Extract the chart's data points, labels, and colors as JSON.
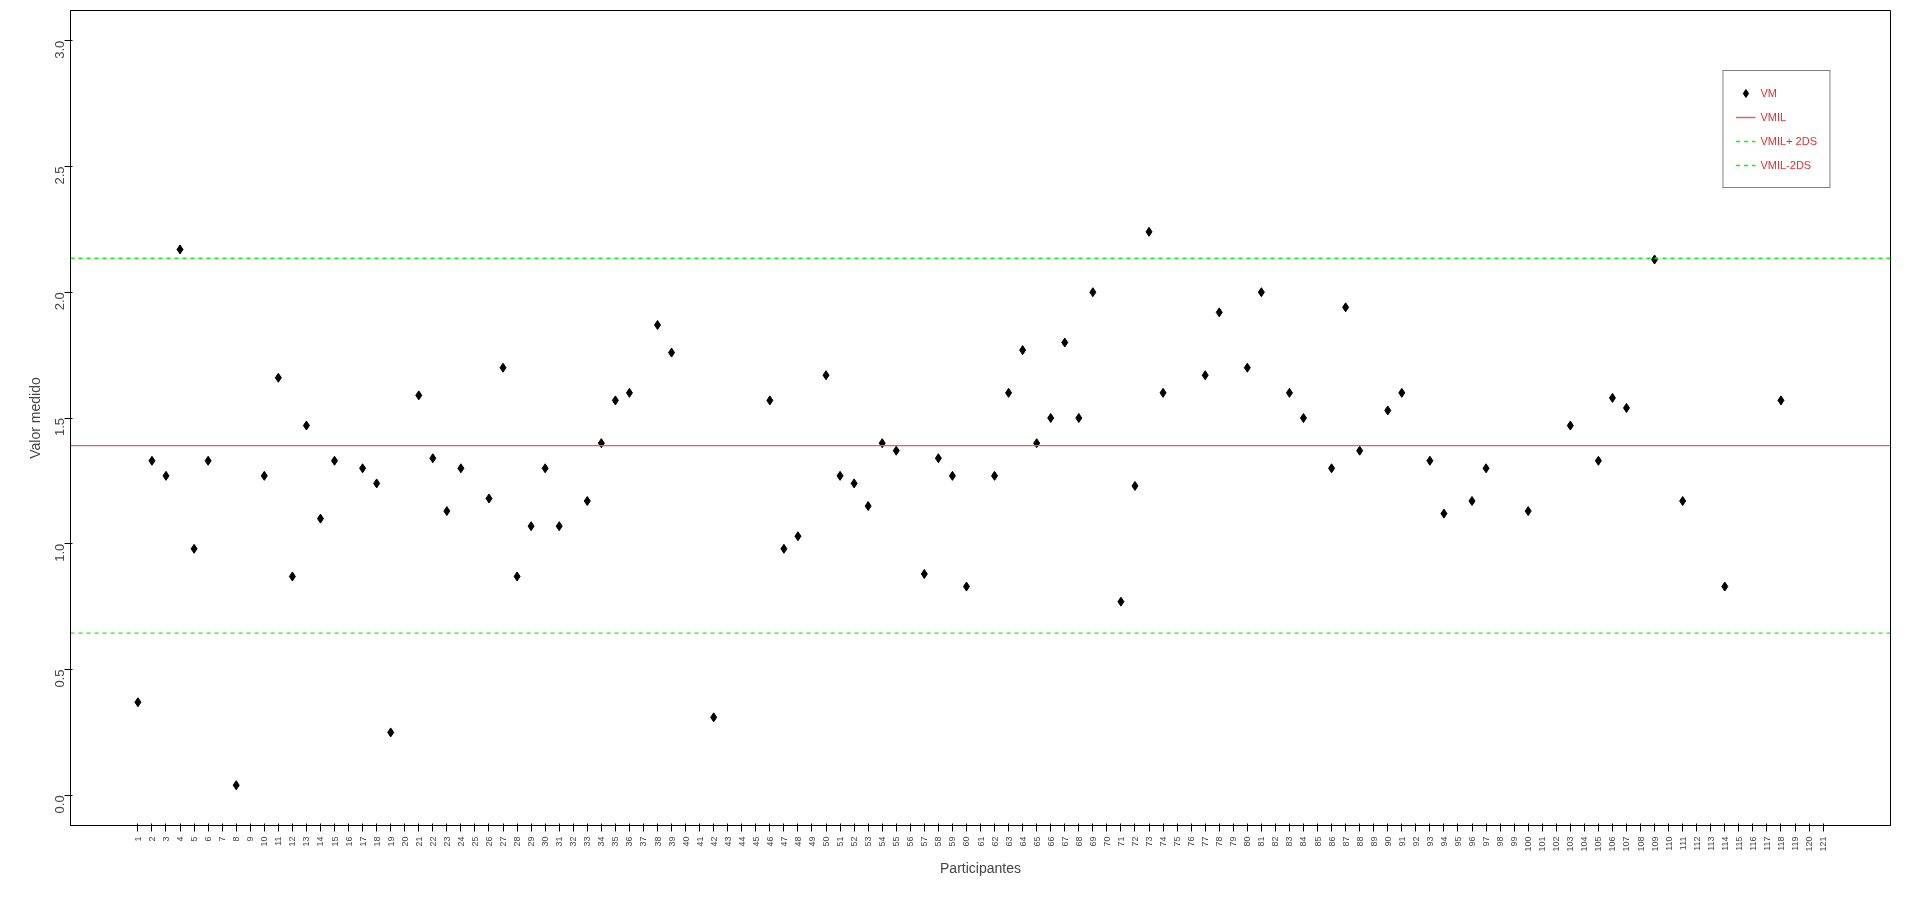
{
  "chart_data": {
    "type": "scatter",
    "xlabel": "Participantes",
    "ylabel": "Valor medido",
    "categories": [
      "1",
      "2",
      "3",
      "4",
      "5",
      "6",
      "7",
      "8",
      "9",
      "10",
      "11",
      "12",
      "13",
      "14",
      "15",
      "16",
      "17",
      "18",
      "19",
      "20",
      "21",
      "22",
      "23",
      "24",
      "25",
      "26",
      "27",
      "28",
      "29",
      "30",
      "31",
      "32",
      "33",
      "34",
      "35",
      "36",
      "37",
      "38",
      "39",
      "40",
      "41",
      "42",
      "43",
      "44",
      "45",
      "46",
      "47",
      "48",
      "49",
      "50",
      "51",
      "52",
      "53",
      "54",
      "55",
      "56",
      "57",
      "58",
      "59",
      "60",
      "61",
      "62",
      "63",
      "64",
      "65",
      "66",
      "67",
      "68",
      "69",
      "70",
      "71",
      "72",
      "73",
      "74",
      "75",
      "76",
      "77",
      "78",
      "79",
      "80",
      "81",
      "82",
      "83",
      "84",
      "85",
      "86",
      "87",
      "88",
      "89",
      "90",
      "91",
      "92",
      "93",
      "94",
      "95",
      "96",
      "97",
      "98",
      "99",
      "100",
      "101",
      "102",
      "103",
      "104",
      "105",
      "106",
      "107",
      "108",
      "109",
      "110",
      "111",
      "112",
      "113",
      "114",
      "115",
      "116",
      "117",
      "118",
      "119",
      "120",
      "121"
    ],
    "series": [
      {
        "name": "VM",
        "color": "#000000",
        "values": [
          0.37,
          1.33,
          1.27,
          2.17,
          0.98,
          1.33,
          null,
          0.04,
          null,
          1.27,
          1.66,
          0.87,
          1.47,
          1.1,
          1.33,
          null,
          1.3,
          1.24,
          0.25,
          null,
          1.59,
          1.34,
          1.13,
          1.3,
          null,
          1.18,
          1.7,
          0.87,
          1.07,
          1.3,
          1.07,
          null,
          1.17,
          1.4,
          1.57,
          1.6,
          null,
          1.87,
          1.76,
          null,
          null,
          0.31,
          null,
          null,
          null,
          1.57,
          0.98,
          1.03,
          null,
          1.67,
          1.27,
          1.24,
          1.15,
          1.4,
          1.37,
          null,
          0.88,
          1.34,
          1.27,
          0.83,
          null,
          1.27,
          1.6,
          1.77,
          1.4,
          1.5,
          1.8,
          1.5,
          2.0,
          null,
          0.77,
          1.23,
          2.24,
          1.6,
          null,
          null,
          1.67,
          1.92,
          null,
          1.7,
          2.0,
          null,
          1.6,
          1.5,
          null,
          1.3,
          1.94,
          1.37,
          null,
          1.53,
          1.6,
          null,
          1.33,
          1.12,
          null,
          1.17,
          1.3,
          null,
          null,
          1.13,
          null,
          null,
          1.47,
          null,
          1.33,
          1.58,
          1.54,
          null,
          2.13,
          null,
          1.17,
          null,
          null,
          0.83,
          null,
          null,
          null,
          1.57,
          null,
          null,
          null
        ]
      }
    ],
    "ref_lines": [
      {
        "axis": "y",
        "value": 1.39,
        "label": "VMIL",
        "color": "#e06070",
        "line_style": "solid"
      },
      {
        "axis": "y",
        "value": 2.135,
        "label": "VMIL+ 2DS",
        "color": "#00ff00",
        "line_style": "dashed"
      },
      {
        "axis": "y",
        "value": 0.645,
        "label": "VMIL-2DS",
        "color": "#00ff00",
        "line_style": "dashed"
      }
    ],
    "ylim": [
      -0.12,
      3.12
    ],
    "yticks": [
      {
        "value": 0,
        "label": "0.0"
      },
      0.5,
      {
        "value": 1,
        "label": "1.0"
      },
      1.5,
      {
        "value": 2,
        "label": "2.0"
      },
      2.5,
      {
        "value": 3,
        "label": "3.0"
      }
    ],
    "marker": "diamond",
    "grid": false,
    "legend": "top right"
  }
}
